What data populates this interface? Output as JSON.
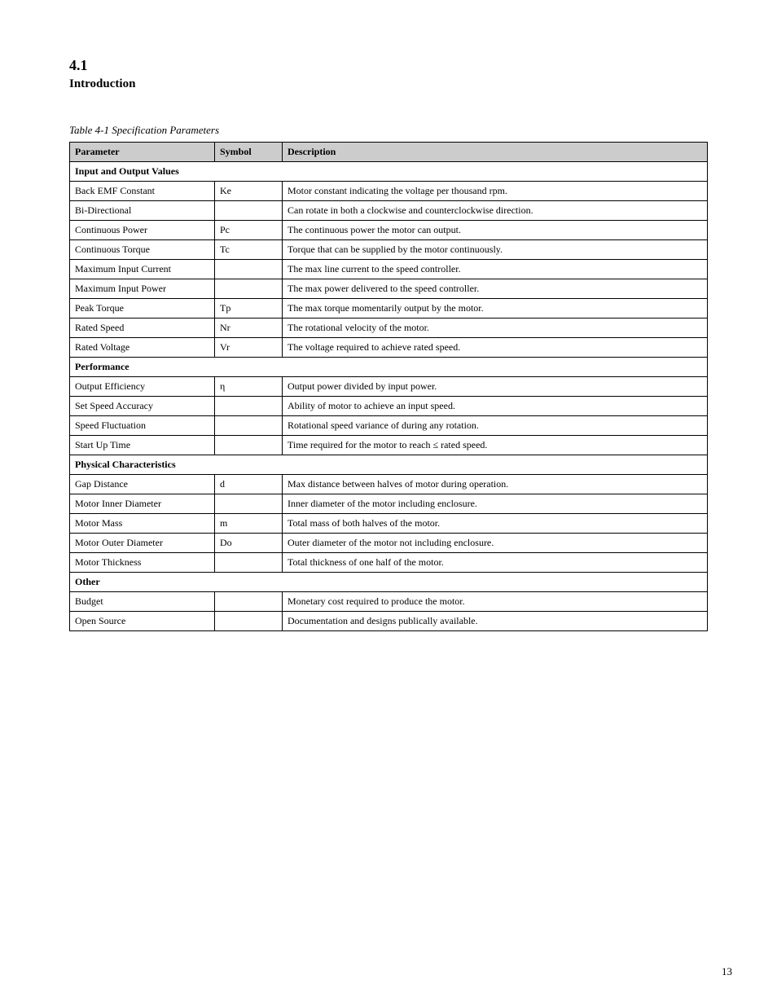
{
  "header": {
    "section_number": "4.1",
    "section_title": "Introduction"
  },
  "table": {
    "caption": "Table 4-1 Specification Parameters",
    "columns": [
      "Parameter",
      "Symbol",
      "Description"
    ],
    "sections": [
      {
        "title": "Input and Output Values",
        "rows": [
          [
            "Back EMF Constant",
            "Ke",
            "Motor constant indicating the voltage per thousand rpm."
          ],
          [
            "Bi-Directional",
            "",
            "Can rotate in both a clockwise and counterclockwise direction."
          ],
          [
            "Continuous Power",
            "Pc",
            "The continuous power the motor can output."
          ],
          [
            "Continuous Torque",
            "Tc",
            "Torque that can be supplied by the motor continuously."
          ],
          [
            "Maximum Input Current",
            "",
            "The max line current to the speed controller."
          ],
          [
            "Maximum Input Power",
            "",
            "The max power delivered to the speed controller."
          ],
          [
            "Peak Torque",
            "Tp",
            "The max torque momentarily output by the motor."
          ],
          [
            "Rated Speed",
            "Nr",
            "The rotational velocity of the motor."
          ],
          [
            "Rated Voltage",
            "Vr",
            "The voltage required to achieve rated speed."
          ]
        ]
      },
      {
        "title": "Performance",
        "rows": [
          [
            "Output Efficiency",
            "η",
            "Output power divided by input power."
          ],
          [
            "Set Speed Accuracy",
            "",
            "Ability of motor to achieve an input speed."
          ],
          [
            "Speed Fluctuation",
            "",
            "Rotational speed variance of during any rotation."
          ],
          [
            "Start Up Time",
            "",
            "Time required for the motor to reach ≤ rated speed."
          ]
        ]
      },
      {
        "title": "Physical Characteristics",
        "rows": [
          [
            "Gap Distance",
            "d",
            "Max distance between halves of motor during operation."
          ],
          [
            "Motor Inner Diameter",
            "",
            "Inner diameter of the motor including enclosure."
          ],
          [
            "Motor Mass",
            "m",
            "Total mass of both halves of the motor."
          ],
          [
            "Motor Outer Diameter",
            "Do",
            "Outer diameter of the motor not including enclosure."
          ],
          [
            "Motor Thickness",
            "",
            "Total thickness of one half of the motor."
          ]
        ]
      },
      {
        "title": "Other",
        "rows": [
          [
            "Budget",
            "",
            "Monetary cost required to produce the motor."
          ],
          [
            "Open Source",
            "",
            "Documentation and designs publically available."
          ]
        ]
      }
    ]
  },
  "footer": {
    "page_number": "13"
  }
}
